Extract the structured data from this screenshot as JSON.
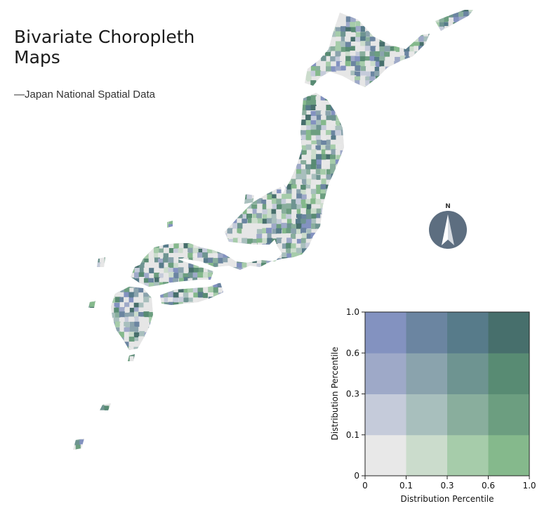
{
  "title": "Bivariate Choropleth Maps",
  "subtitle": "—Japan National Spatial Data",
  "compass": {
    "label": "N"
  },
  "colors": {
    "background": "#ffffff",
    "land_base": "#e6e6e6",
    "matrix": [
      [
        "#e8e8e8",
        "#cbdccc",
        "#a6ccaa",
        "#85b98c"
      ],
      [
        "#c5cbda",
        "#a8bfbd",
        "#89ae9d",
        "#6c9e80"
      ],
      [
        "#9ea9c8",
        "#8aa3ad",
        "#6e9491",
        "#588b73"
      ],
      [
        "#8392c0",
        "#6b85a1",
        "#577b8a",
        "#476f6c"
      ]
    ]
  },
  "chart_data": {
    "type": "heatmap",
    "xlabel": "Distribution Percentile",
    "ylabel": "Distribution Percentile",
    "x_ticks": [
      "0",
      "0.1",
      "0.3",
      "0.6",
      "1.0"
    ],
    "y_ticks": [
      "0",
      "0.1",
      "0.3",
      "0.6",
      "1.0"
    ],
    "x_breaks": [
      0,
      0.1,
      0.3,
      0.6,
      1.0
    ],
    "y_breaks": [
      0,
      0.1,
      0.3,
      0.6,
      1.0
    ],
    "grid": "4x4"
  }
}
